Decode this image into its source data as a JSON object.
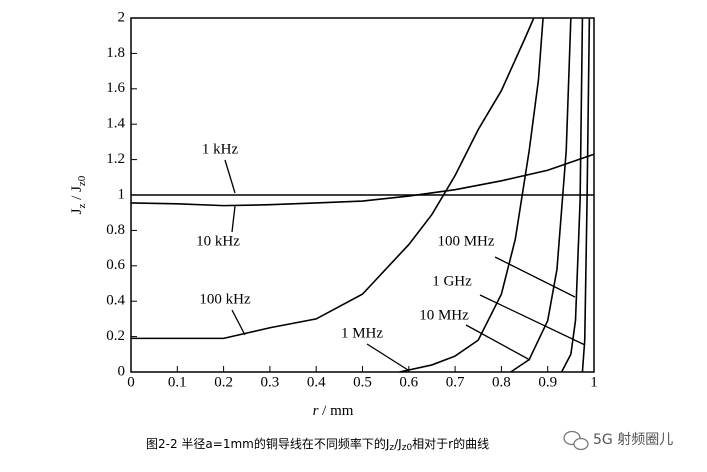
{
  "chart_data": {
    "type": "line",
    "y_label": [
      "J",
      "z",
      " / J",
      "z0"
    ],
    "x_label": [
      "r",
      " / mm"
    ],
    "caption": [
      "图2-2 半径a=1mm的铜导线在不同频率下的J",
      "z",
      "/J",
      "z0",
      "相对于r的曲线"
    ],
    "watermark": "5G 射频圈儿",
    "xlim": [
      0,
      1
    ],
    "ylim": [
      0,
      2
    ],
    "xticks": [
      0,
      0.1,
      0.2,
      0.3,
      0.4,
      0.5,
      0.6,
      0.7,
      0.8,
      0.9,
      1
    ],
    "yticks": [
      0,
      0.2,
      0.4,
      0.6,
      0.8,
      1,
      1.2,
      1.4,
      1.6,
      1.8,
      2
    ],
    "series": [
      {
        "name": "1 kHz",
        "color": "#000000",
        "x": [
          0,
          1
        ],
        "values": [
          1,
          1
        ]
      },
      {
        "name": "10 kHz",
        "color": "#000000",
        "x": [
          0,
          0.1,
          0.2,
          0.3,
          0.4,
          0.5,
          0.6,
          0.7,
          0.8,
          0.9,
          1
        ],
        "values": [
          0.955,
          0.95,
          0.94,
          0.945,
          0.955,
          0.966,
          0.994,
          1.03,
          1.08,
          1.14,
          1.23
        ]
      },
      {
        "name": "100 kHz",
        "color": "#000000",
        "x": [
          0,
          0.1,
          0.2,
          0.3,
          0.4,
          0.5,
          0.6,
          0.65,
          0.7,
          0.75,
          0.8,
          0.85,
          0.87
        ],
        "values": [
          0.19,
          0.19,
          0.19,
          0.25,
          0.3,
          0.44,
          0.72,
          0.89,
          1.11,
          1.37,
          1.59,
          1.88,
          2
        ]
      },
      {
        "name": "1 MHz",
        "color": "#000000",
        "x": [
          0.58,
          0.65,
          0.7,
          0.75,
          0.8,
          0.83,
          0.86,
          0.88,
          0.89
        ],
        "values": [
          0,
          0.04,
          0.09,
          0.18,
          0.44,
          0.75,
          1.25,
          1.65,
          2
        ]
      },
      {
        "name": "10 MHz",
        "color": "#000000",
        "x": [
          0.82,
          0.86,
          0.9,
          0.92,
          0.94,
          0.95
        ],
        "values": [
          0,
          0.07,
          0.29,
          0.58,
          1.25,
          2
        ]
      },
      {
        "name": "100 MHz",
        "color": "#000000",
        "x": [
          0.93,
          0.95,
          0.96,
          0.97,
          0.975
        ],
        "values": [
          0,
          0.1,
          0.29,
          0.97,
          2
        ]
      },
      {
        "name": "1 GHz",
        "color": "#000000",
        "x": [
          0.975,
          0.98,
          0.985,
          0.99
        ],
        "values": [
          0,
          0.18,
          0.97,
          2
        ]
      }
    ]
  }
}
